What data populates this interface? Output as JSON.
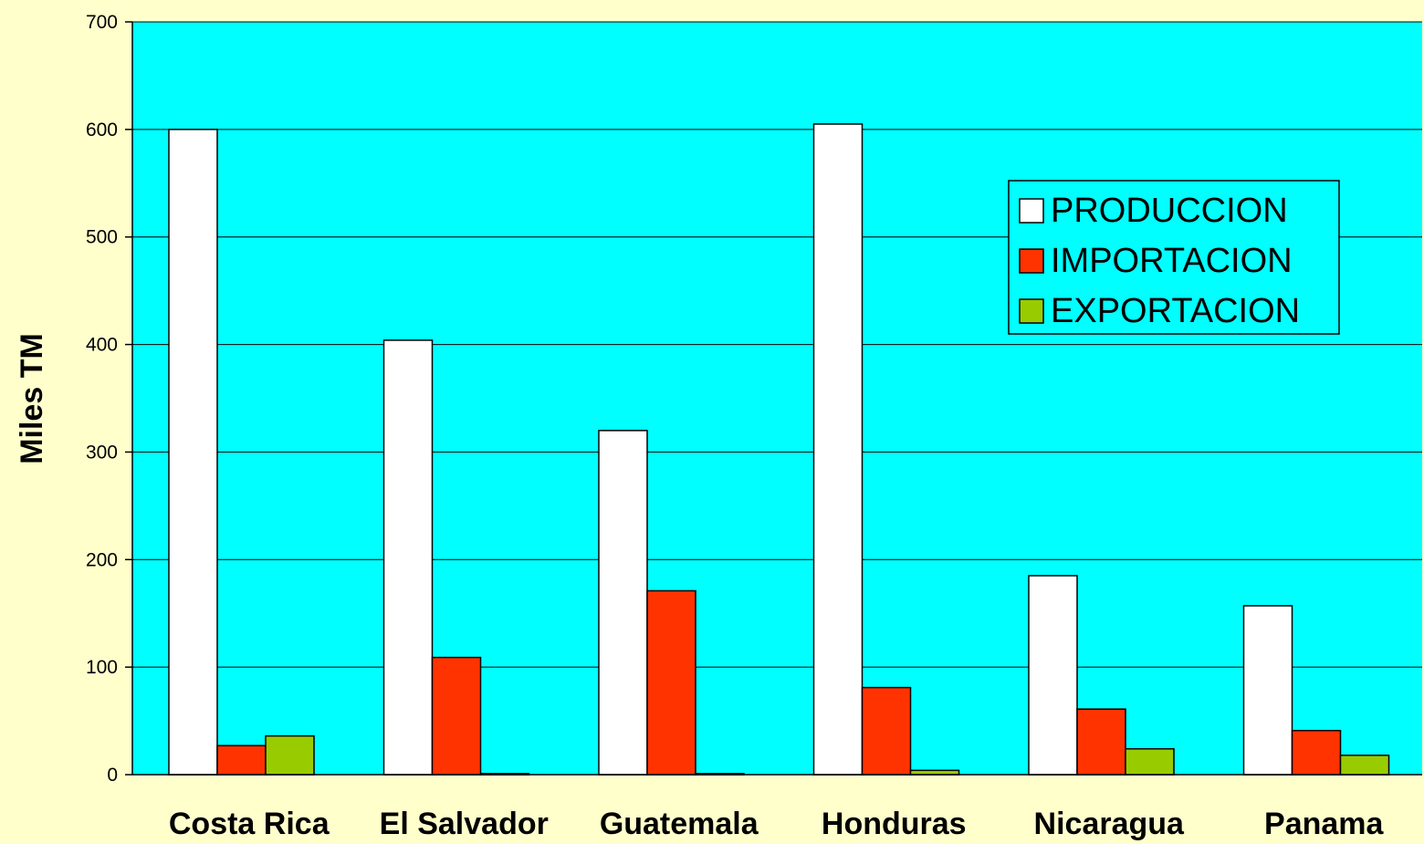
{
  "chart_data": {
    "type": "bar",
    "title": "",
    "xlabel": "",
    "ylabel": "Miles TM",
    "ylim": [
      0,
      700
    ],
    "yticks": [
      0,
      100,
      200,
      300,
      400,
      500,
      600,
      700
    ],
    "grid": true,
    "legend_position": "top-right",
    "plot_background": "#00FFFF",
    "page_background": "#FFFFCC",
    "categories": [
      "Costa Rica",
      "El Salvador",
      "Guatemala",
      "Honduras",
      "Nicaragua",
      "Panama"
    ],
    "series": [
      {
        "name": "PRODUCCION",
        "color": "#FFFFFF",
        "values": [
          600,
          404,
          320,
          605,
          185,
          157
        ]
      },
      {
        "name": "IMPORTACION",
        "color": "#FF3300",
        "values": [
          27,
          109,
          171,
          81,
          61,
          41
        ]
      },
      {
        "name": "EXPORTACION",
        "color": "#99CC00",
        "values": [
          36,
          1,
          1,
          4,
          24,
          18
        ]
      }
    ]
  }
}
